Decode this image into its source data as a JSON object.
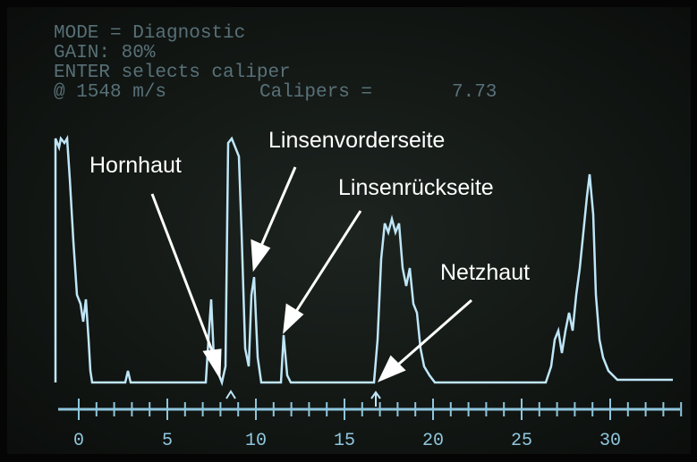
{
  "screen": {
    "lines": [
      "MODE = Diagnostic",
      "GAIN: 80%",
      "ENTER selects caliper",
      "@ 1548 m/s",
      "Calipers =",
      "7.73"
    ]
  },
  "annotations": [
    "Hornhaut",
    "Linsenvorderseite",
    "Linsenrückseite",
    "Netzhaut"
  ],
  "axis": {
    "labels": [
      "0",
      "5",
      "10",
      "15",
      "20",
      "25",
      "30"
    ]
  }
}
